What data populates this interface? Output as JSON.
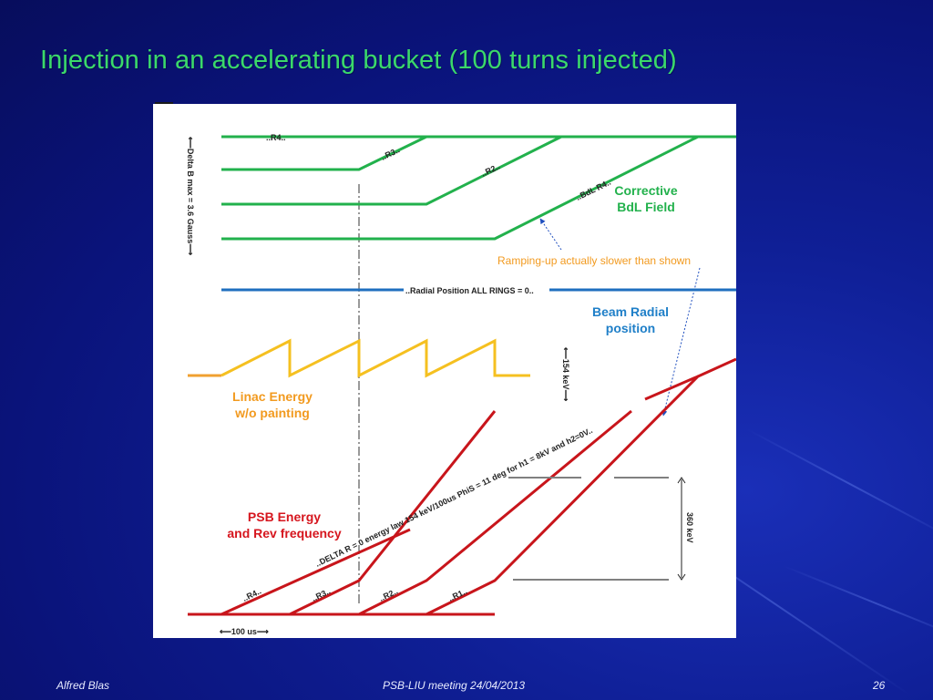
{
  "slide": {
    "title": "Injection in an accelerating bucket (100 turns injected)",
    "footer": {
      "author": "Alfred Blas",
      "meeting": "PSB-LIU meeting  24/04/2013",
      "page": "26"
    }
  },
  "diagram": {
    "colors": {
      "bdl": "#22b14c",
      "radial": "#1f6fbf",
      "linac": "#f5c020",
      "linac_start": "#f0a030",
      "psb": "#c8151b",
      "grey": "#808080",
      "dashdot": "#333333",
      "legend_green": "#22b14c",
      "legend_blue": "#1f7fc8",
      "legend_orange": "#f29a1f",
      "legend_red": "#d6161e",
      "annotation": "#f29a1f"
    },
    "labels": {
      "delta_b_axis": "⟵Delta B max = 3.6 Gauss⟶",
      "bdl_r4_top": "..R4..",
      "bdl_r3": "..R3..",
      "bdl_r2": "..R2..",
      "bdl_r4": "..BdL R4..",
      "corrective_line1": "Corrective",
      "corrective_line2": "BdL Field",
      "ramping_note": "Ramping-up  actually slower than shown",
      "radial_line_label": "..Radial Position ALL RINGS = 0..",
      "beam_radial_line1": "Beam Radial",
      "beam_radial_line2": "position",
      "kev154": "⟵154 keV⟶",
      "linac_line1": "Linac Energy",
      "linac_line2": "w/o painting",
      "psb_line1": "PSB Energy",
      "psb_line2": "and Rev frequency",
      "psb_law": "..DELTA R = 0 energy law    154 keV/100us  PhiS = 11 deg for h1 = 8kV and h2=0V..",
      "psb_r4": "..R4..",
      "psb_r3": "..R3..",
      "psb_r2": "..R2..",
      "psb_r1": "..R1..",
      "kev360": "360 keV",
      "time_scale": "⟵100 us⟶"
    }
  }
}
